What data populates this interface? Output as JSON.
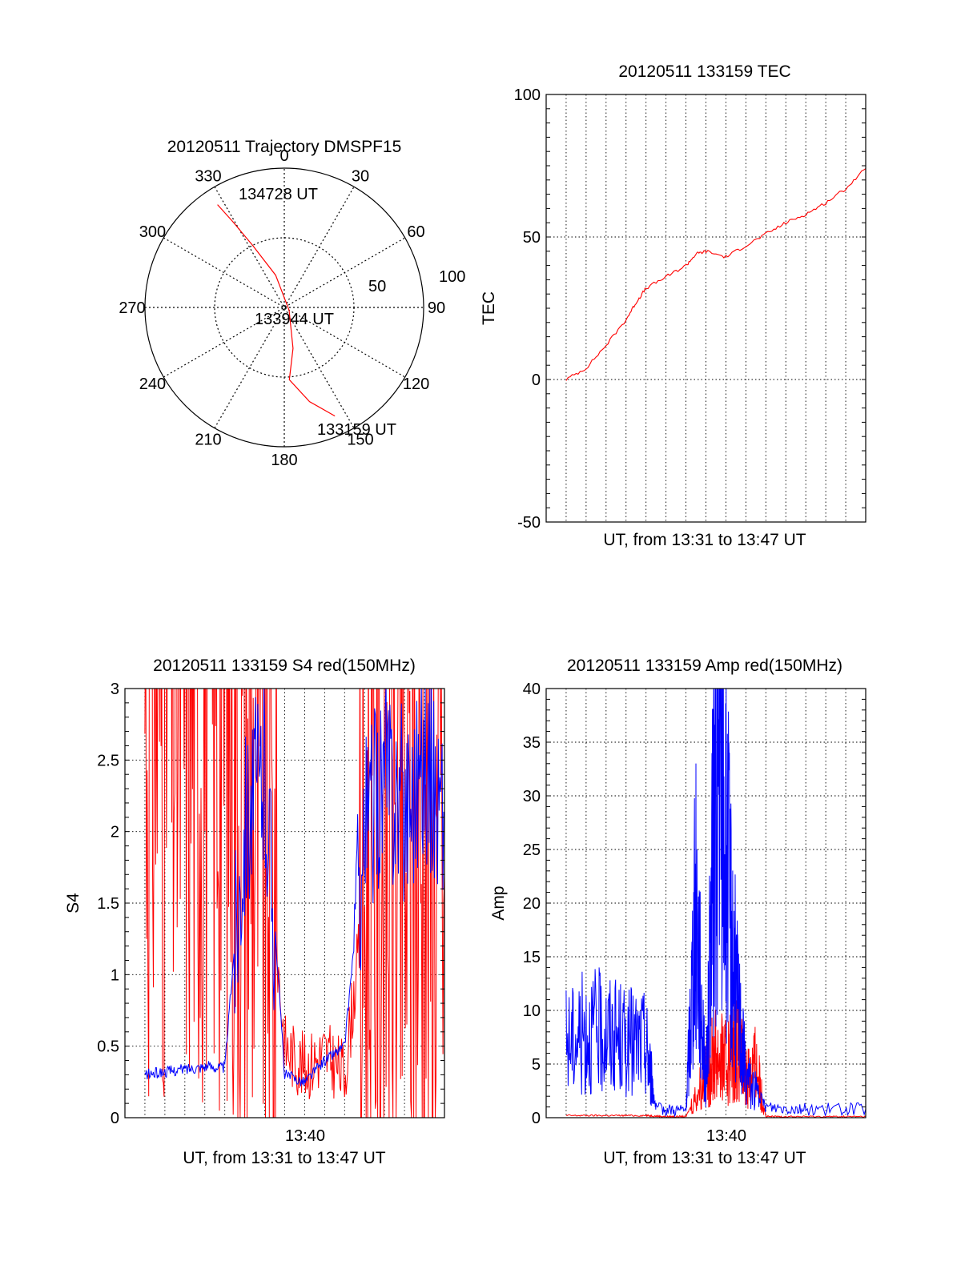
{
  "colors": {
    "red": "#ff0000",
    "blue": "#0000ff",
    "axis": "#000000"
  },
  "chart_data": [
    {
      "id": "trajectory",
      "type": "scatter",
      "projection": "polar",
      "title": "20120511 Trajectory DMSPF15",
      "angle_labels": [
        "0",
        "30",
        "60",
        "90",
        "120",
        "150",
        "180",
        "210",
        "240",
        "270",
        "300",
        "330"
      ],
      "radius_labels": [
        "50",
        "100"
      ],
      "rlim": [
        0,
        100
      ],
      "grid": true,
      "point_labels": [
        {
          "text": "134728 UT",
          "azimuth_deg": 327,
          "radius": 88
        },
        {
          "text": "133944 UT",
          "azimuth_deg": 0,
          "radius": 0
        },
        {
          "text": "133159 UT",
          "azimuth_deg": 155,
          "radius": 86
        }
      ],
      "series": [
        {
          "color": "#ff0000",
          "points": [
            {
              "azimuth_deg": 327,
              "radius": 88
            },
            {
              "azimuth_deg": 329,
              "radius": 72
            },
            {
              "azimuth_deg": 333,
              "radius": 50
            },
            {
              "azimuth_deg": 345,
              "radius": 24
            },
            {
              "azimuth_deg": 120,
              "radius": 4
            },
            {
              "azimuth_deg": 168,
              "radius": 30
            },
            {
              "azimuth_deg": 176,
              "radius": 52
            },
            {
              "azimuth_deg": 165,
              "radius": 70
            },
            {
              "azimuth_deg": 155,
              "radius": 86
            }
          ]
        }
      ]
    },
    {
      "id": "tec",
      "type": "line",
      "title": "20120511 133159 TEC",
      "xlabel": "UT, from 13:31 to 13:47 UT",
      "ylabel": "TEC",
      "xlim": [
        "13:31",
        "13:47"
      ],
      "ylim": [
        -50,
        100
      ],
      "yticks": [
        "-50",
        "0",
        "50",
        "100"
      ],
      "grid": true,
      "series": [
        {
          "color": "#ff0000",
          "x": [
            "13:32",
            "13:33",
            "13:34",
            "13:35",
            "13:35:30",
            "13:36",
            "13:37",
            "13:38",
            "13:38:30",
            "13:39",
            "13:40",
            "13:41",
            "13:42",
            "13:43",
            "13:44",
            "13:45",
            "13:46",
            "13:47"
          ],
          "y": [
            0,
            4,
            12,
            21,
            27,
            32,
            36,
            40,
            44,
            45,
            43,
            47,
            51,
            55,
            58,
            62,
            67,
            74
          ]
        }
      ]
    },
    {
      "id": "s4",
      "type": "line",
      "title": "20120511 133159 S4 red(150MHz)",
      "xlabel": "UT, from 13:31 to 13:47 UT",
      "ylabel": "S4",
      "xlim": [
        "13:31",
        "13:47"
      ],
      "ylim": [
        0,
        3
      ],
      "yticks": [
        "0",
        "0.5",
        "1",
        "1.5",
        "2",
        "2.5",
        "3"
      ],
      "xticks": [
        "13:40"
      ],
      "grid": true,
      "series": [
        {
          "color": "#ff0000",
          "x": [
            "13:32",
            "13:33",
            "13:34",
            "13:35",
            "13:36",
            "13:37",
            "13:38",
            "13:39",
            "13:40",
            "13:41",
            "13:42",
            "13:43",
            "13:44",
            "13:45",
            "13:46",
            "13:47"
          ],
          "y": [
            3,
            3,
            3,
            3,
            3,
            2.4,
            2.2,
            0.5,
            0.35,
            0.45,
            0.3,
            1.5,
            2.0,
            1.8,
            1.9,
            1.7
          ]
        },
        {
          "color": "#0000ff",
          "x": [
            "13:32",
            "13:33",
            "13:34",
            "13:35",
            "13:36",
            "13:37",
            "13:38",
            "13:39",
            "13:40",
            "13:41",
            "13:42",
            "13:43",
            "13:44",
            "13:45",
            "13:46",
            "13:47"
          ],
          "y": [
            0.3,
            0.32,
            0.34,
            0.36,
            0.35,
            2.1,
            2.4,
            0.3,
            0.25,
            0.4,
            0.5,
            2.0,
            2.4,
            2.2,
            2.5,
            2.1
          ]
        }
      ]
    },
    {
      "id": "amp",
      "type": "line",
      "title": "20120511 133159 Amp red(150MHz)",
      "xlabel": "UT, from 13:31 to 13:47 UT",
      "ylabel": "Amp",
      "xlim": [
        "13:31",
        "13:47"
      ],
      "ylim": [
        0,
        40
      ],
      "yticks": [
        "0",
        "5",
        "10",
        "15",
        "20",
        "25",
        "30",
        "35",
        "40"
      ],
      "xticks": [
        "13:40"
      ],
      "grid": true,
      "series": [
        {
          "color": "#ff0000",
          "x": [
            "13:32",
            "13:34",
            "13:36",
            "13:37",
            "13:38",
            "13:39",
            "13:39:30",
            "13:40",
            "13:40:30",
            "13:41",
            "13:41:30",
            "13:42",
            "13:43",
            "13:45",
            "13:47"
          ],
          "y": [
            0.2,
            0.2,
            0.2,
            0.1,
            0.1,
            4,
            6,
            5,
            7,
            4,
            5,
            0.1,
            0.1,
            0.1,
            0.1
          ]
        },
        {
          "color": "#0000ff",
          "x": [
            "13:32",
            "13:33",
            "13:34",
            "13:35",
            "13:36",
            "13:36:30",
            "13:38",
            "13:38:30",
            "13:39",
            "13:39:30",
            "13:40",
            "13:40:30",
            "13:41",
            "13:42",
            "13:44",
            "13:47"
          ],
          "y": [
            7,
            8,
            8,
            7,
            7,
            0.8,
            0.7,
            20,
            3,
            32,
            25,
            12,
            4,
            1,
            0.8,
            0.8
          ]
        }
      ]
    }
  ]
}
